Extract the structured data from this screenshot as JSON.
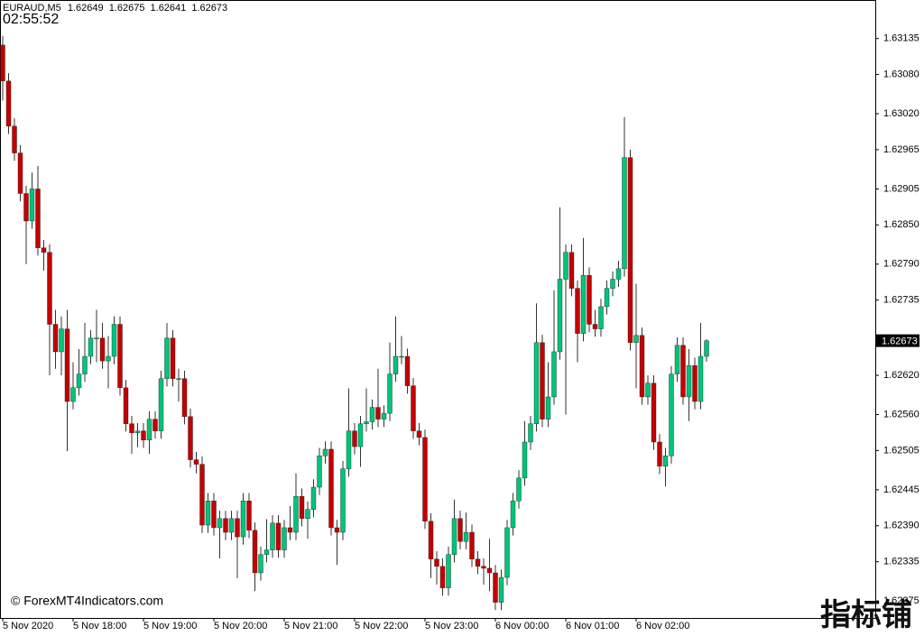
{
  "chart_data": {
    "type": "candlestick",
    "symbol": "EURAUD,M5",
    "clock": "02:55:52",
    "watermark": "© ForexMT4Indicators.com",
    "watermark_cn": "指标铺",
    "up_color": "#00c47a",
    "down_color": "#c30000",
    "ylim": [
      1.62249,
      1.63187
    ],
    "yticks": [
      {
        "value": 1.63135,
        "label": "1.63135"
      },
      {
        "value": 1.6308,
        "label": "1.63080"
      },
      {
        "value": 1.6302,
        "label": "1.63020"
      },
      {
        "value": 1.62965,
        "label": "1.62965"
      },
      {
        "value": 1.62905,
        "label": "1.62905"
      },
      {
        "value": 1.6285,
        "label": "1.62850"
      },
      {
        "value": 1.6279,
        "label": "1.62790"
      },
      {
        "value": 1.62735,
        "label": "1.62735"
      },
      {
        "value": 1.6262,
        "label": "1.62620"
      },
      {
        "value": 1.6256,
        "label": "1.62560"
      },
      {
        "value": 1.62505,
        "label": "1.62505"
      },
      {
        "value": 1.62445,
        "label": "1.62445"
      },
      {
        "value": 1.6239,
        "label": "1.62390"
      },
      {
        "value": 1.62335,
        "label": "1.62335"
      },
      {
        "value": 1.62275,
        "label": "1.62275"
      }
    ],
    "categories": [
      "5 Nov 2020",
      null,
      null,
      null,
      null,
      null,
      null,
      null,
      null,
      null,
      null,
      null,
      "5 Nov 18:00",
      null,
      null,
      null,
      null,
      null,
      null,
      null,
      null,
      null,
      null,
      null,
      "5 Nov 19:00",
      null,
      null,
      null,
      null,
      null,
      null,
      null,
      null,
      null,
      null,
      null,
      "5 Nov 20:00",
      null,
      null,
      null,
      null,
      null,
      null,
      null,
      null,
      null,
      null,
      null,
      "5 Nov 21:00",
      null,
      null,
      null,
      null,
      null,
      null,
      null,
      null,
      null,
      null,
      null,
      "5 Nov 22:00",
      null,
      null,
      null,
      null,
      null,
      null,
      null,
      null,
      null,
      null,
      null,
      "5 Nov 23:00",
      null,
      null,
      null,
      null,
      null,
      null,
      null,
      null,
      null,
      null,
      null,
      "6 Nov 00:00",
      null,
      null,
      null,
      null,
      null,
      null,
      null,
      null,
      null,
      null,
      null,
      "6 Nov 01:00",
      null,
      null,
      null,
      null,
      null,
      null,
      null,
      null,
      null,
      null,
      null,
      "6 Nov 02:00",
      null,
      null,
      null,
      null,
      null,
      null,
      null,
      null,
      null,
      null,
      null,
      null
    ],
    "open": [
      1.63125,
      1.6307,
      1.63001,
      1.6296,
      1.62898,
      1.62856,
      1.62905,
      1.62815,
      1.62808,
      1.62698,
      1.62656,
      1.62691,
      1.6258,
      1.62601,
      1.62622,
      1.62649,
      1.62677,
      1.62677,
      1.62642,
      1.62649,
      1.62698,
      1.62601,
      1.62546,
      1.62532,
      1.62535,
      1.62521,
      1.62553,
      1.62535,
      1.62615,
      1.62677,
      1.62615,
      1.62615,
      1.62557,
      1.62491,
      1.62484,
      1.62391,
      1.62428,
      1.62387,
      1.62401,
      1.6238,
      1.62401,
      1.62373,
      1.62428,
      1.62383,
      1.62318,
      1.62346,
      1.62353,
      1.62394,
      1.62353,
      1.62387,
      1.6238,
      1.62435,
      1.62401,
      1.62415,
      1.62449,
      1.62497,
      1.62507,
      1.62387,
      1.6238,
      1.62477,
      1.62535,
      1.62511,
      1.62546,
      1.62549,
      1.62571,
      1.62553,
      1.62562,
      1.62622,
      1.62649,
      1.62649,
      1.62604,
      1.62535,
      1.62525,
      1.62397,
      1.62339,
      1.62328,
      1.62295,
      1.62346,
      1.62401,
      1.62366,
      1.6238,
      1.62339,
      1.62328,
      1.62325,
      1.62318,
      1.62273,
      1.62311,
      1.62387,
      1.62428,
      1.62463,
      1.62518,
      1.62546,
      1.6267,
      1.62553,
      1.62587,
      1.62656,
      1.62767,
      1.62808,
      1.62753,
      1.62684,
      1.62773,
      1.62698,
      1.62691,
      1.62725,
      1.62753,
      1.62767,
      1.62783,
      1.62953,
      1.6267,
      1.62681,
      1.62587,
      1.62608,
      1.62518,
      1.62481,
      1.62497,
      1.62622,
      1.62666,
      1.62587,
      1.62635,
      1.6258,
      1.62649
    ],
    "high": [
      1.63139,
      1.63082,
      1.63013,
      1.62972,
      1.6291,
      1.6293,
      1.6294,
      1.62827,
      1.6282,
      1.6272,
      1.6271,
      1.6272,
      1.6264,
      1.6266,
      1.627,
      1.62689,
      1.6272,
      1.627,
      1.6268,
      1.6271,
      1.6271,
      1.62613,
      1.62558,
      1.62547,
      1.62547,
      1.62565,
      1.62565,
      1.62627,
      1.627,
      1.62689,
      1.6263,
      1.62627,
      1.62569,
      1.62503,
      1.62496,
      1.6244,
      1.6244,
      1.62413,
      1.62413,
      1.62413,
      1.62413,
      1.6244,
      1.6244,
      1.62395,
      1.62358,
      1.624,
      1.62406,
      1.62406,
      1.62399,
      1.6242,
      1.6247,
      1.62447,
      1.62427,
      1.62461,
      1.62509,
      1.62519,
      1.62519,
      1.62399,
      1.62489,
      1.626,
      1.62547,
      1.62558,
      1.626,
      1.62583,
      1.6263,
      1.62574,
      1.6267,
      1.6271,
      1.6268,
      1.62661,
      1.62616,
      1.62547,
      1.62537,
      1.62409,
      1.62351,
      1.6234,
      1.62358,
      1.6243,
      1.62413,
      1.6241,
      1.62392,
      1.62351,
      1.6234,
      1.6237,
      1.6233,
      1.62323,
      1.62399,
      1.6244,
      1.62475,
      1.6255,
      1.62558,
      1.6273,
      1.62682,
      1.6264,
      1.6275,
      1.62877,
      1.6282,
      1.6282,
      1.62765,
      1.6283,
      1.62785,
      1.6272,
      1.62737,
      1.62765,
      1.62779,
      1.62795,
      1.63015,
      1.62965,
      1.6276,
      1.62693,
      1.6262,
      1.6262,
      1.6253,
      1.62509,
      1.62634,
      1.62678,
      1.62678,
      1.6266,
      1.62647,
      1.627,
      1.62675
    ],
    "low": [
      1.6304,
      1.62989,
      1.62948,
      1.62886,
      1.6279,
      1.62844,
      1.62803,
      1.6278,
      1.6262,
      1.6263,
      1.6262,
      1.62504,
      1.62568,
      1.62589,
      1.6261,
      1.62637,
      1.6264,
      1.6263,
      1.626,
      1.62637,
      1.62589,
      1.62534,
      1.625,
      1.6251,
      1.62509,
      1.625,
      1.62523,
      1.62523,
      1.62603,
      1.62603,
      1.6258,
      1.62545,
      1.62479,
      1.6247,
      1.62379,
      1.62379,
      1.62375,
      1.6234,
      1.62368,
      1.62368,
      1.6231,
      1.62361,
      1.62371,
      1.6229,
      1.62306,
      1.62334,
      1.62341,
      1.62341,
      1.62341,
      1.62368,
      1.62368,
      1.62389,
      1.6237,
      1.62403,
      1.62437,
      1.62485,
      1.62375,
      1.6233,
      1.62368,
      1.62465,
      1.62499,
      1.6248,
      1.62534,
      1.62537,
      1.62541,
      1.62541,
      1.6255,
      1.6261,
      1.62637,
      1.62592,
      1.62523,
      1.62513,
      1.62385,
      1.6231,
      1.623,
      1.62283,
      1.62283,
      1.62334,
      1.62354,
      1.62354,
      1.62327,
      1.62316,
      1.623,
      1.6229,
      1.62261,
      1.62261,
      1.62299,
      1.62375,
      1.62416,
      1.62451,
      1.62506,
      1.62534,
      1.62541,
      1.62541,
      1.62575,
      1.62644,
      1.6256,
      1.62741,
      1.6264,
      1.62672,
      1.62686,
      1.62679,
      1.62679,
      1.62713,
      1.62741,
      1.62755,
      1.62771,
      1.62658,
      1.626,
      1.62575,
      1.62575,
      1.62506,
      1.62469,
      1.6245,
      1.62485,
      1.6261,
      1.62575,
      1.6255,
      1.62568,
      1.62568,
      1.62641
    ],
    "close": [
      1.6307,
      1.63001,
      1.6296,
      1.62898,
      1.62856,
      1.62905,
      1.62815,
      1.62808,
      1.62698,
      1.62656,
      1.62691,
      1.6258,
      1.62601,
      1.62622,
      1.62649,
      1.62677,
      1.62677,
      1.62642,
      1.62649,
      1.62698,
      1.62601,
      1.62546,
      1.62532,
      1.62535,
      1.62521,
      1.62553,
      1.62535,
      1.62615,
      1.62677,
      1.62615,
      1.62615,
      1.62557,
      1.62491,
      1.62484,
      1.62391,
      1.62428,
      1.62387,
      1.62401,
      1.6238,
      1.62401,
      1.62373,
      1.62428,
      1.62383,
      1.62318,
      1.62346,
      1.62353,
      1.62394,
      1.62353,
      1.62387,
      1.6238,
      1.62435,
      1.62401,
      1.62415,
      1.62449,
      1.62497,
      1.62507,
      1.62387,
      1.6238,
      1.62477,
      1.62535,
      1.62511,
      1.62546,
      1.62549,
      1.62571,
      1.62553,
      1.62562,
      1.62622,
      1.62649,
      1.62649,
      1.62604,
      1.62535,
      1.62525,
      1.62397,
      1.62339,
      1.62328,
      1.62295,
      1.62346,
      1.62401,
      1.62366,
      1.6238,
      1.62339,
      1.62328,
      1.62325,
      1.62318,
      1.62273,
      1.62311,
      1.62387,
      1.62428,
      1.62463,
      1.62518,
      1.62546,
      1.6267,
      1.62553,
      1.62587,
      1.62656,
      1.62767,
      1.62808,
      1.62753,
      1.62684,
      1.62773,
      1.62698,
      1.62691,
      1.62725,
      1.62753,
      1.62767,
      1.62783,
      1.62953,
      1.6267,
      1.62681,
      1.62587,
      1.62608,
      1.62518,
      1.62481,
      1.62497,
      1.62622,
      1.62666,
      1.62587,
      1.62635,
      1.6258,
      1.62649,
      1.62673
    ]
  }
}
